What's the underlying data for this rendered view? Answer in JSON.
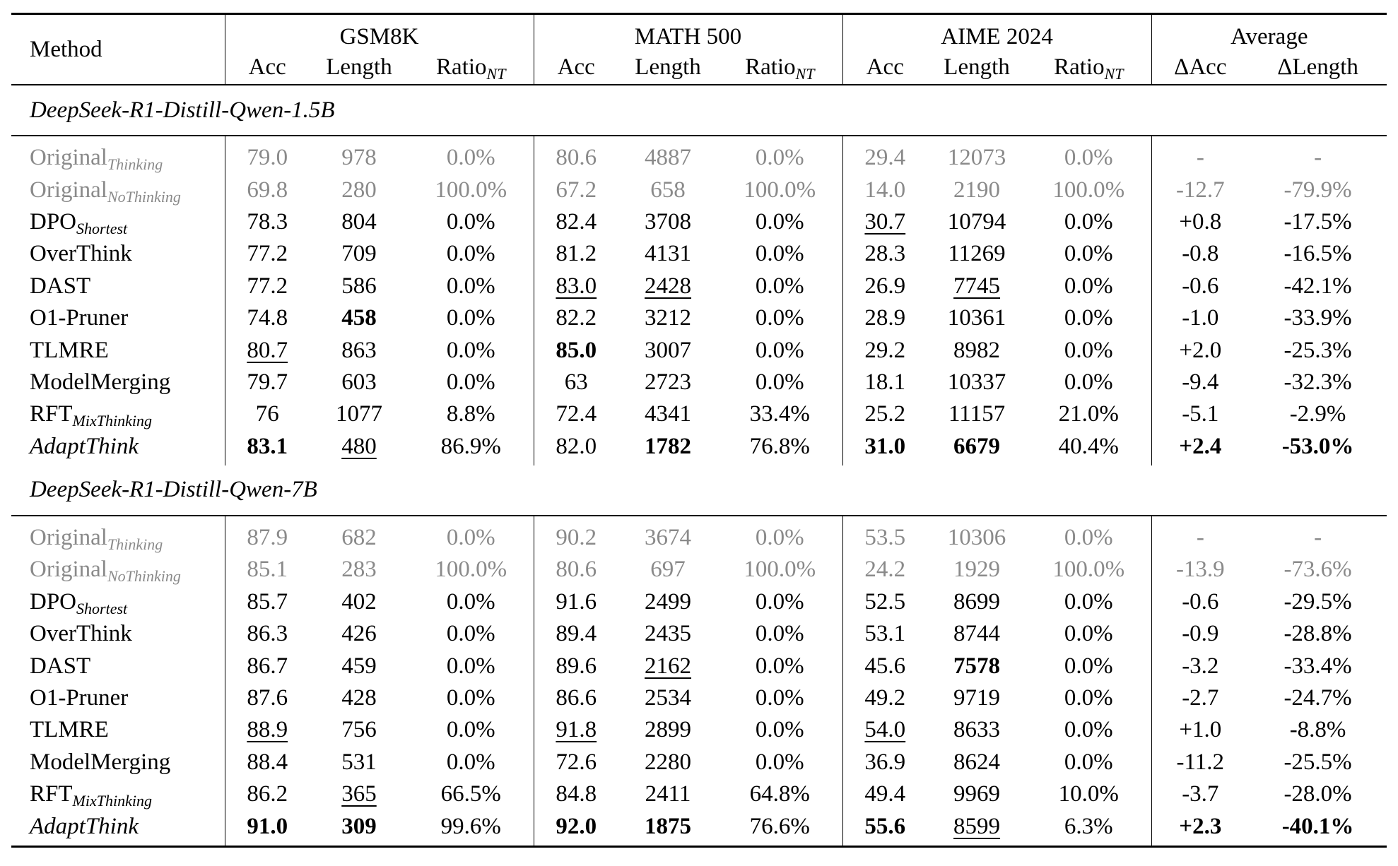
{
  "header": {
    "method": "Method",
    "benchmarks": [
      "GSM8K",
      "MATH 500",
      "AIME 2024"
    ],
    "average": "Average",
    "sub_acc": "Acc",
    "sub_length": "Length",
    "sub_ratio_base": "Ratio",
    "sub_ratio_sub": "NT",
    "delta_acc": "ΔAcc",
    "delta_length": "ΔLength"
  },
  "groups": [
    {
      "name": "DeepSeek-R1-Distill-Qwen-1.5B",
      "rows": [
        {
          "base": "Original",
          "sub": "Thinking",
          "gray": true,
          "italic": false,
          "cells": [
            "79.0",
            "978",
            "0.0%",
            "80.6",
            "4887",
            "0.0%",
            "29.4",
            "12073",
            "0.0%",
            "-",
            "-"
          ],
          "bold": [],
          "underline": []
        },
        {
          "base": "Original",
          "sub": "NoThinking",
          "gray": true,
          "italic": false,
          "cells": [
            "69.8",
            "280",
            "100.0%",
            "67.2",
            "658",
            "100.0%",
            "14.0",
            "2190",
            "100.0%",
            "-12.7",
            "-79.9%"
          ],
          "bold": [],
          "underline": []
        },
        {
          "base": "DPO",
          "sub": "Shortest",
          "gray": false,
          "italic": false,
          "cells": [
            "78.3",
            "804",
            "0.0%",
            "82.4",
            "3708",
            "0.0%",
            "30.7",
            "10794",
            "0.0%",
            "+0.8",
            "-17.5%"
          ],
          "bold": [],
          "underline": [
            6
          ]
        },
        {
          "base": "OverThink",
          "sub": "",
          "gray": false,
          "italic": false,
          "cells": [
            "77.2",
            "709",
            "0.0%",
            "81.2",
            "4131",
            "0.0%",
            "28.3",
            "11269",
            "0.0%",
            "-0.8",
            "-16.5%"
          ],
          "bold": [],
          "underline": []
        },
        {
          "base": "DAST",
          "sub": "",
          "gray": false,
          "italic": false,
          "cells": [
            "77.2",
            "586",
            "0.0%",
            "83.0",
            "2428",
            "0.0%",
            "26.9",
            "7745",
            "0.0%",
            "-0.6",
            "-42.1%"
          ],
          "bold": [],
          "underline": [
            3,
            4,
            7
          ]
        },
        {
          "base": "O1-Pruner",
          "sub": "",
          "gray": false,
          "italic": false,
          "cells": [
            "74.8",
            "458",
            "0.0%",
            "82.2",
            "3212",
            "0.0%",
            "28.9",
            "10361",
            "0.0%",
            "-1.0",
            "-33.9%"
          ],
          "bold": [
            1
          ],
          "underline": []
        },
        {
          "base": "TLMRE",
          "sub": "",
          "gray": false,
          "italic": false,
          "cells": [
            "80.7",
            "863",
            "0.0%",
            "85.0",
            "3007",
            "0.0%",
            "29.2",
            "8982",
            "0.0%",
            "+2.0",
            "-25.3%"
          ],
          "bold": [
            3
          ],
          "underline": [
            0
          ]
        },
        {
          "base": "ModelMerging",
          "sub": "",
          "gray": false,
          "italic": false,
          "cells": [
            "79.7",
            "603",
            "0.0%",
            "63",
            "2723",
            "0.0%",
            "18.1",
            "10337",
            "0.0%",
            "-9.4",
            "-32.3%"
          ],
          "bold": [],
          "underline": []
        },
        {
          "base": "RFT",
          "sub": "MixThinking",
          "gray": false,
          "italic": false,
          "cells": [
            "76",
            "1077",
            "8.8%",
            "72.4",
            "4341",
            "33.4%",
            "25.2",
            "11157",
            "21.0%",
            "-5.1",
            "-2.9%"
          ],
          "bold": [],
          "underline": []
        },
        {
          "base": "AdaptThink",
          "sub": "",
          "gray": false,
          "italic": true,
          "cells": [
            "83.1",
            "480",
            "86.9%",
            "82.0",
            "1782",
            "76.8%",
            "31.0",
            "6679",
            "40.4%",
            "+2.4",
            "-53.0%"
          ],
          "bold": [
            0,
            4,
            6,
            7,
            9,
            10
          ],
          "underline": [
            1
          ]
        }
      ]
    },
    {
      "name": "DeepSeek-R1-Distill-Qwen-7B",
      "rows": [
        {
          "base": "Original",
          "sub": "Thinking",
          "gray": true,
          "italic": false,
          "cells": [
            "87.9",
            "682",
            "0.0%",
            "90.2",
            "3674",
            "0.0%",
            "53.5",
            "10306",
            "0.0%",
            "-",
            "-"
          ],
          "bold": [],
          "underline": []
        },
        {
          "base": "Original",
          "sub": "NoThinking",
          "gray": true,
          "italic": false,
          "cells": [
            "85.1",
            "283",
            "100.0%",
            "80.6",
            "697",
            "100.0%",
            "24.2",
            "1929",
            "100.0%",
            "-13.9",
            "-73.6%"
          ],
          "bold": [],
          "underline": []
        },
        {
          "base": "DPO",
          "sub": "Shortest",
          "gray": false,
          "italic": false,
          "cells": [
            "85.7",
            "402",
            "0.0%",
            "91.6",
            "2499",
            "0.0%",
            "52.5",
            "8699",
            "0.0%",
            "-0.6",
            "-29.5%"
          ],
          "bold": [],
          "underline": []
        },
        {
          "base": "OverThink",
          "sub": "",
          "gray": false,
          "italic": false,
          "cells": [
            "86.3",
            "426",
            "0.0%",
            "89.4",
            "2435",
            "0.0%",
            "53.1",
            "8744",
            "0.0%",
            "-0.9",
            "-28.8%"
          ],
          "bold": [],
          "underline": []
        },
        {
          "base": "DAST",
          "sub": "",
          "gray": false,
          "italic": false,
          "cells": [
            "86.7",
            "459",
            "0.0%",
            "89.6",
            "2162",
            "0.0%",
            "45.6",
            "7578",
            "0.0%",
            "-3.2",
            "-33.4%"
          ],
          "bold": [
            7
          ],
          "underline": [
            4
          ]
        },
        {
          "base": "O1-Pruner",
          "sub": "",
          "gray": false,
          "italic": false,
          "cells": [
            "87.6",
            "428",
            "0.0%",
            "86.6",
            "2534",
            "0.0%",
            "49.2",
            "9719",
            "0.0%",
            "-2.7",
            "-24.7%"
          ],
          "bold": [],
          "underline": []
        },
        {
          "base": "TLMRE",
          "sub": "",
          "gray": false,
          "italic": false,
          "cells": [
            "88.9",
            "756",
            "0.0%",
            "91.8",
            "2899",
            "0.0%",
            "54.0",
            "8633",
            "0.0%",
            "+1.0",
            "-8.8%"
          ],
          "bold": [],
          "underline": [
            0,
            3,
            6
          ]
        },
        {
          "base": "ModelMerging",
          "sub": "",
          "gray": false,
          "italic": false,
          "cells": [
            "88.4",
            "531",
            "0.0%",
            "72.6",
            "2280",
            "0.0%",
            "36.9",
            "8624",
            "0.0%",
            "-11.2",
            "-25.5%"
          ],
          "bold": [],
          "underline": []
        },
        {
          "base": "RFT",
          "sub": "MixThinking",
          "gray": false,
          "italic": false,
          "cells": [
            "86.2",
            "365",
            "66.5%",
            "84.8",
            "2411",
            "64.8%",
            "49.4",
            "9969",
            "10.0%",
            "-3.7",
            "-28.0%"
          ],
          "bold": [],
          "underline": [
            1
          ]
        },
        {
          "base": "AdaptThink",
          "sub": "",
          "gray": false,
          "italic": true,
          "cells": [
            "91.0",
            "309",
            "99.6%",
            "92.0",
            "1875",
            "76.6%",
            "55.6",
            "8599",
            "6.3%",
            "+2.3",
            "-40.1%"
          ],
          "bold": [
            0,
            1,
            3,
            4,
            6,
            9,
            10
          ],
          "underline": [
            7
          ]
        }
      ]
    }
  ]
}
